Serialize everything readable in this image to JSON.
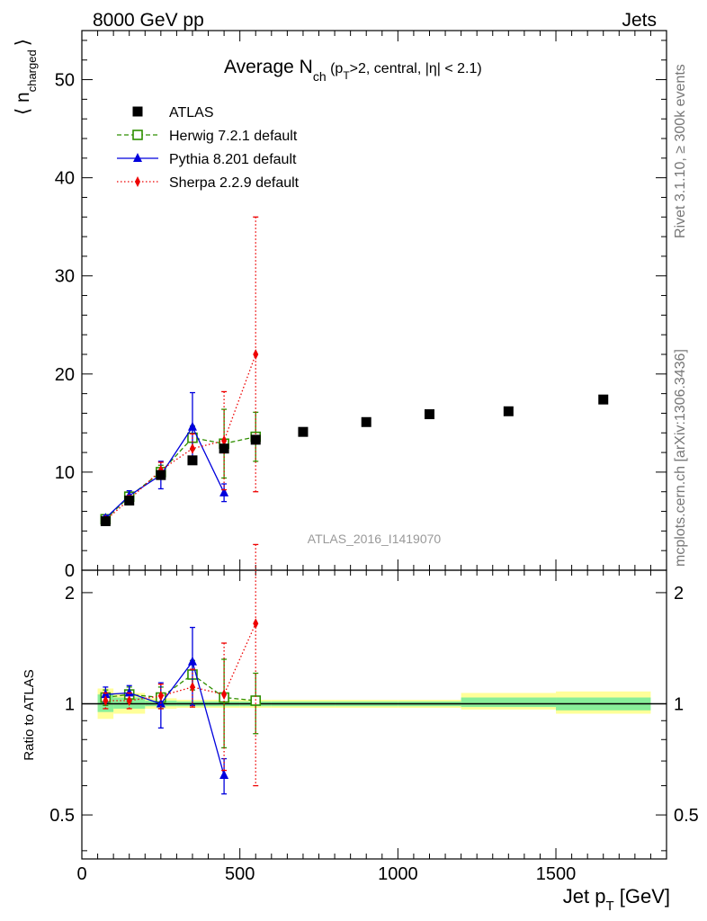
{
  "header": {
    "left_label": "8000 GeV pp",
    "right_label": "Jets"
  },
  "side_labels": {
    "rivet": "Rivet 3.1.10, ≥ 300k events",
    "mcplots": "mcplots.cern.ch [arXiv:1306.3436]"
  },
  "watermark": "ATLAS_2016_I1419070",
  "chart_data": [
    {
      "type": "scatter",
      "title": {
        "main": "Average N",
        "sub": "ch",
        "rest": " (p",
        "rest_sub": "T",
        "rest2": ">2, central, |η| < 2.1)"
      },
      "ylabel": {
        "main": "⟨ n",
        "sub": "charged",
        "close": "⟩"
      },
      "xlim": [
        0,
        1850
      ],
      "ylim": [
        0,
        55
      ],
      "yticks": [
        0,
        10,
        20,
        30,
        40,
        50
      ],
      "legend_position": "top-left",
      "series": [
        {
          "name": "ATLAS",
          "color": "#000000",
          "marker": "filled-square",
          "x": [
            75,
            150,
            250,
            350,
            450,
            550,
            700,
            900,
            1100,
            1350,
            1650
          ],
          "y": [
            5.0,
            7.1,
            9.7,
            11.2,
            12.4,
            13.3,
            14.1,
            15.1,
            15.9,
            16.2,
            17.4
          ],
          "yerr": [
            0.2,
            0.2,
            0.2,
            0.2,
            0.2,
            0.2,
            0.2,
            0.2,
            0.2,
            0.2,
            0.2
          ]
        },
        {
          "name": "Herwig 7.2.1 default",
          "color": "#2f8f00",
          "marker": "open-square",
          "line": "dashed",
          "x": [
            75,
            150,
            250,
            350,
            450,
            550
          ],
          "y": [
            5.2,
            7.5,
            10.0,
            13.5,
            12.9,
            13.6
          ],
          "yerr": [
            0.3,
            0.4,
            0.7,
            1.2,
            3.5,
            2.5
          ]
        },
        {
          "name": "Pythia 8.201 default",
          "color": "#0000dd",
          "marker": "filled-triangle",
          "line": "solid",
          "x": [
            75,
            150,
            250,
            350,
            450
          ],
          "y": [
            5.3,
            7.6,
            9.7,
            14.6,
            7.9
          ],
          "yerr": [
            0.3,
            0.5,
            1.4,
            3.5,
            0.9
          ]
        },
        {
          "name": "Sherpa 2.2.9 default",
          "color": "#ee0000",
          "marker": "filled-diamond",
          "line": "dotted",
          "x": [
            75,
            150,
            250,
            350,
            450,
            550
          ],
          "y": [
            5.1,
            7.2,
            10.2,
            12.4,
            13.2,
            22.0
          ],
          "yerr": [
            0.3,
            0.4,
            0.8,
            1.5,
            5.0,
            14.0
          ]
        }
      ]
    },
    {
      "type": "scatter",
      "ylabel": "Ratio to ATLAS",
      "xlabel": {
        "main": "Jet p",
        "sub": "T",
        "rest": " [GeV]"
      },
      "xlim": [
        0,
        1850
      ],
      "xticks": [
        0,
        500,
        1000,
        1500
      ],
      "ylim": [
        0.38,
        2.3
      ],
      "yscale": "log",
      "yticks": [
        0.5,
        1,
        2
      ],
      "reference_line": 1,
      "bands": [
        {
          "x0": 50,
          "x1": 100,
          "inner": [
            0.95,
            1.06
          ],
          "outer": [
            0.91,
            1.1
          ]
        },
        {
          "x0": 100,
          "x1": 200,
          "inner": [
            0.97,
            1.04
          ],
          "outer": [
            0.94,
            1.07
          ]
        },
        {
          "x0": 200,
          "x1": 300,
          "inner": [
            0.985,
            1.02
          ],
          "outer": [
            0.97,
            1.035
          ]
        },
        {
          "x0": 300,
          "x1": 400,
          "inner": [
            0.985,
            1.015
          ],
          "outer": [
            0.975,
            1.025
          ]
        },
        {
          "x0": 400,
          "x1": 500,
          "inner": [
            0.985,
            1.015
          ],
          "outer": [
            0.975,
            1.025
          ]
        },
        {
          "x0": 500,
          "x1": 600,
          "inner": [
            0.985,
            1.015
          ],
          "outer": [
            0.975,
            1.025
          ]
        },
        {
          "x0": 600,
          "x1": 800,
          "inner": [
            0.985,
            1.015
          ],
          "outer": [
            0.975,
            1.025
          ]
        },
        {
          "x0": 800,
          "x1": 1000,
          "inner": [
            0.985,
            1.015
          ],
          "outer": [
            0.975,
            1.025
          ]
        },
        {
          "x0": 1000,
          "x1": 1200,
          "inner": [
            0.985,
            1.015
          ],
          "outer": [
            0.975,
            1.025
          ]
        },
        {
          "x0": 1200,
          "x1": 1500,
          "inner": [
            0.98,
            1.04
          ],
          "outer": [
            0.965,
            1.07
          ]
        },
        {
          "x0": 1500,
          "x1": 1800,
          "inner": [
            0.96,
            1.04
          ],
          "outer": [
            0.94,
            1.08
          ]
        }
      ],
      "series": [
        {
          "name": "Herwig 7.2.1 default",
          "color": "#2f8f00",
          "marker": "open-square",
          "line": "dashed",
          "x": [
            75,
            150,
            250,
            350,
            450,
            550
          ],
          "y": [
            1.04,
            1.06,
            1.04,
            1.2,
            1.04,
            1.02
          ],
          "yerr": [
            0.05,
            0.05,
            0.07,
            0.11,
            0.28,
            0.19
          ]
        },
        {
          "name": "Pythia 8.201 default",
          "color": "#0000dd",
          "marker": "filled-triangle",
          "line": "solid",
          "x": [
            75,
            150,
            250,
            350,
            450
          ],
          "y": [
            1.06,
            1.07,
            1.0,
            1.3,
            0.64
          ],
          "yerr": [
            0.05,
            0.05,
            0.14,
            0.31,
            0.07
          ]
        },
        {
          "name": "Sherpa 2.2.9 default",
          "color": "#ee0000",
          "marker": "filled-diamond",
          "line": "dotted",
          "x": [
            75,
            150,
            250,
            350,
            450,
            550
          ],
          "y": [
            1.02,
            1.02,
            1.05,
            1.11,
            1.06,
            1.65
          ],
          "yerr": [
            0.05,
            0.05,
            0.08,
            0.13,
            0.4,
            1.05
          ]
        }
      ]
    }
  ]
}
